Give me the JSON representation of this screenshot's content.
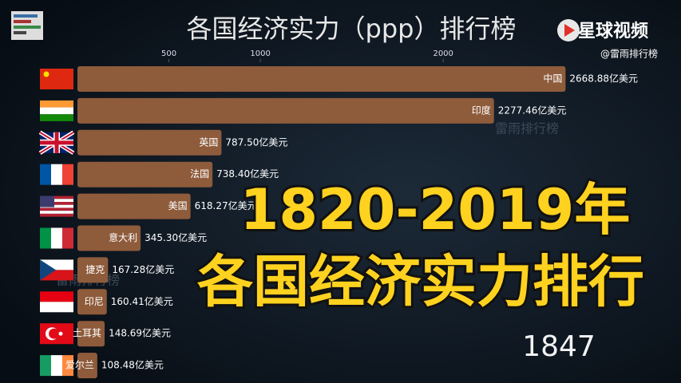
{
  "chart_data": {
    "type": "bar",
    "orientation": "horizontal",
    "title": "各国经济实力（ppp）排行榜",
    "categories": [
      "中国",
      "印度",
      "英国",
      "法国",
      "美国",
      "意大利",
      "捷克",
      "印尼",
      "土耳其",
      "爱尔兰"
    ],
    "values": [
      2668.88,
      2277.46,
      787.5,
      738.4,
      618.27,
      345.3,
      167.28,
      160.41,
      148.69,
      108.48
    ],
    "value_labels": [
      "2668.88亿美元",
      "2277.46亿美元",
      "787.50亿美元",
      "738.40亿美元",
      "618.27亿美元",
      "345.30亿美元",
      "167.28亿美元",
      "160.41亿美元",
      "148.69亿美元",
      "108.48亿美元"
    ],
    "color": "#8e5b3b",
    "xlim": [
      0,
      3300
    ],
    "xticks": [
      500,
      1000,
      2000
    ],
    "annotations": [
      "1820-2019年",
      "各国经济实力排行"
    ],
    "year_label": "1847",
    "brand": "星球视频",
    "handle": "@雷雨排行榜",
    "watermark": "雷雨排行榜"
  }
}
